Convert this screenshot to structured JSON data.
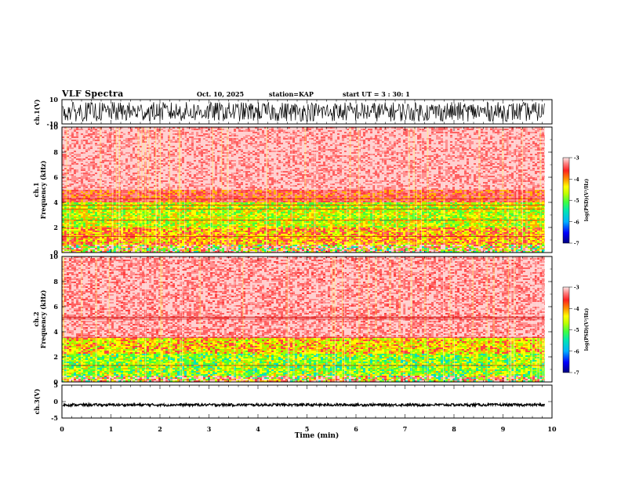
{
  "header": {
    "title": "VLF Spectra",
    "date": "Oct. 10, 2025",
    "station_label": "station=",
    "station": "KAP",
    "start_label": "start  UT =",
    "start_value": "3  : 30: 1"
  },
  "colors": {
    "spectrogram_scale": [
      "#000080",
      "#0000ff",
      "#00a0ff",
      "#00e0c0",
      "#40ff40",
      "#a0ff00",
      "#ffff00",
      "#ffb000",
      "#ff4040",
      "#ff6060",
      "#ff9090",
      "#ffd0d0"
    ],
    "trace": "#000000",
    "background": "#ffffff"
  },
  "chart_data": [
    {
      "type": "line",
      "name": "ch1-waveform",
      "ylabel": "ch.1(V)",
      "ylim": [
        -10,
        10
      ],
      "y_ticks": [
        "10",
        "-10"
      ],
      "description_of_signal": "noisy oscillation roughly between -8 and 8 V",
      "amplitude_approx": 8,
      "xlim": [
        0,
        9.85
      ]
    },
    {
      "type": "heatmap",
      "name": "ch1-spectrogram",
      "ylabel": "ch.1 Frequency (kHz)",
      "ylabel_line1": "ch.1",
      "ylabel_line2": "Frequency (kHz)",
      "ylim": [
        0,
        10
      ],
      "y_ticks": [
        "0",
        "2",
        "4",
        "6",
        "8",
        "10"
      ],
      "xlim": [
        0,
        9.85
      ],
      "bands": [
        {
          "from_khz": 0,
          "to_khz": 0.6,
          "level": "mixed"
        },
        {
          "from_khz": 0.6,
          "to_khz": 2.0,
          "level": -4.5
        },
        {
          "from_khz": 2.0,
          "to_khz": 4.0,
          "level": -5.0
        },
        {
          "from_khz": 4.0,
          "to_khz": 5.0,
          "level": -4.0
        },
        {
          "from_khz": 5.0,
          "to_khz": 10.0,
          "level": -3.3
        }
      ],
      "colorbar": {
        "label": "log(PSD)(V²/Hz)",
        "ticks": [
          "-3",
          "-4",
          "-5",
          "-6",
          "-7"
        ],
        "range": [
          -7,
          -3
        ]
      }
    },
    {
      "type": "heatmap",
      "name": "ch2-spectrogram",
      "ylabel": "ch.2 Frequency (kHz)",
      "ylabel_line1": "ch.2",
      "ylabel_line2": "Frequency (kHz)",
      "ylim": [
        0,
        10
      ],
      "y_ticks": [
        "0",
        "2",
        "4",
        "6",
        "8",
        "10"
      ],
      "xlim": [
        0,
        9.85
      ],
      "bands": [
        {
          "from_khz": 0,
          "to_khz": 0.5,
          "level": "mixed"
        },
        {
          "from_khz": 0.5,
          "to_khz": 2.2,
          "level": -5.2
        },
        {
          "from_khz": 2.2,
          "to_khz": 3.5,
          "level": -4.7
        },
        {
          "from_khz": 3.5,
          "to_khz": 10.0,
          "level": -3.4
        }
      ],
      "colorbar": {
        "label": "log(PSD)(V²/Hz)",
        "ticks": [
          "-3",
          "-4",
          "-5",
          "-6",
          "-7"
        ],
        "range": [
          -7,
          -3
        ]
      }
    },
    {
      "type": "line",
      "name": "ch3-waveform",
      "ylabel": "ch.3(V)",
      "ylim": [
        -5,
        5
      ],
      "y_ticks": [
        "5",
        "0",
        "-5"
      ],
      "description_of_signal": "flat band near -1 V with small oscillation",
      "center_v": -1,
      "amplitude_approx": 0.4,
      "xlim": [
        0,
        9.85
      ],
      "xlabel": "Time (min)",
      "x_range": [
        0,
        10
      ],
      "x_ticks": [
        "0",
        "1",
        "2",
        "3",
        "4",
        "5",
        "6",
        "7",
        "8",
        "9",
        "10"
      ]
    }
  ]
}
